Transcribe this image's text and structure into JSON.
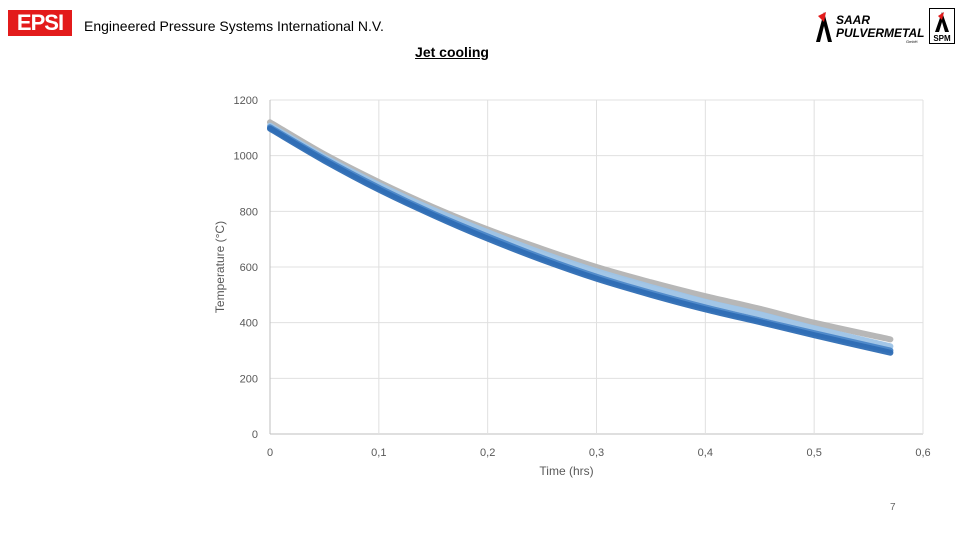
{
  "header": {
    "logo_left": "EPSI",
    "company": "Engineered Pressure Systems International N.V.",
    "title": "Jet cooling",
    "logo_right_line1": "SAAR",
    "logo_right_line2": "PULVERMETALL",
    "logo_right_sub": "GmbH",
    "logo_spm": "SPM"
  },
  "page_number": "7",
  "colors": {
    "series_gray": "#b3b3b3",
    "series_light_blue": "#9dc3e6",
    "series_blue": "#4a86c8",
    "series_dark_blue": "#2e6db4",
    "grid": "#e0e0e0",
    "epsi_red": "#e31b1b"
  },
  "chart_data": {
    "type": "line",
    "title": "",
    "xlabel": "Time (hrs)",
    "ylabel": "Temperature (°C)",
    "xlim": [
      0,
      0.6
    ],
    "ylim": [
      0,
      1200
    ],
    "xticks": [
      "0",
      "0,1",
      "0,2",
      "0,3",
      "0,4",
      "0,5",
      "0,6"
    ],
    "yticks": [
      "0",
      "200",
      "400",
      "600",
      "800",
      "1000",
      "1200"
    ],
    "grid": true,
    "legend": "none",
    "x": [
      0,
      0.05,
      0.1,
      0.15,
      0.2,
      0.25,
      0.3,
      0.35,
      0.4,
      0.45,
      0.5,
      0.57
    ],
    "series": [
      {
        "color": "#b3b3b3",
        "values": [
          1120,
          1005,
          905,
          815,
          735,
          665,
          600,
          545,
          495,
          450,
          400,
          340
        ]
      },
      {
        "color": "#9dc3e6",
        "values": [
          1108,
          995,
          895,
          805,
          725,
          650,
          585,
          528,
          475,
          430,
          380,
          315
        ]
      },
      {
        "color": "#4a86c8",
        "values": [
          1102,
          988,
          885,
          792,
          710,
          633,
          565,
          507,
          455,
          408,
          362,
          300
        ]
      },
      {
        "color": "#2e6db4",
        "values": [
          1097,
          982,
          878,
          786,
          702,
          626,
          558,
          500,
          448,
          402,
          355,
          292
        ]
      }
    ]
  }
}
